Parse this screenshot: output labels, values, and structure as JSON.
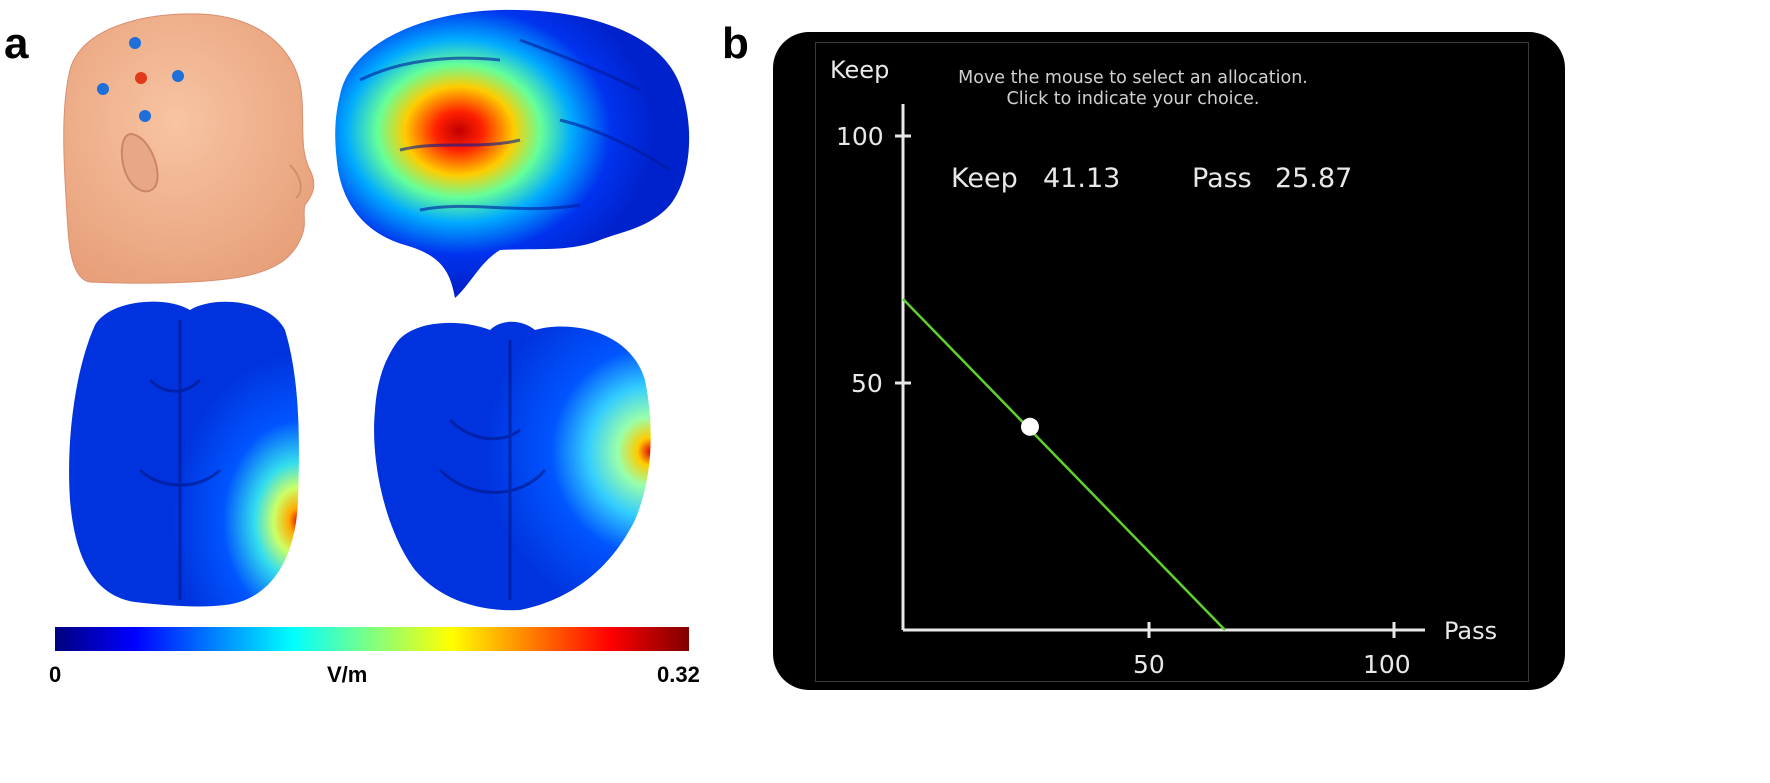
{
  "panels": {
    "a_label": "a",
    "b_label": "b"
  },
  "colorbar": {
    "min_label": "0",
    "unit_label": "V/m",
    "max_label": "0.32",
    "colormap": [
      "#00007f",
      "#0000ff",
      "#0080ff",
      "#00ffff",
      "#80ff80",
      "#ffff00",
      "#ff8000",
      "#ff0000",
      "#7f0000"
    ]
  },
  "head_model": {
    "skin_color": "#f2b08a",
    "electrode_colors": {
      "anode": "#e03a1a",
      "cathode": "#1e6fd9"
    }
  },
  "task_screen": {
    "instruction_line1": "Move the mouse to select an allocation.",
    "instruction_line2": "Click to indicate your choice.",
    "y_axis_label": "Keep",
    "x_axis_label": "Pass",
    "y_ticks": [
      "100",
      "50"
    ],
    "x_ticks": [
      "50",
      "100"
    ],
    "keep_label": "Keep",
    "keep_value": "41.13",
    "pass_label": "Pass",
    "pass_value": "25.87",
    "budget_line_color": "#5fd12a",
    "selected_point": {
      "pass": 25.87,
      "keep": 41.13
    }
  }
}
